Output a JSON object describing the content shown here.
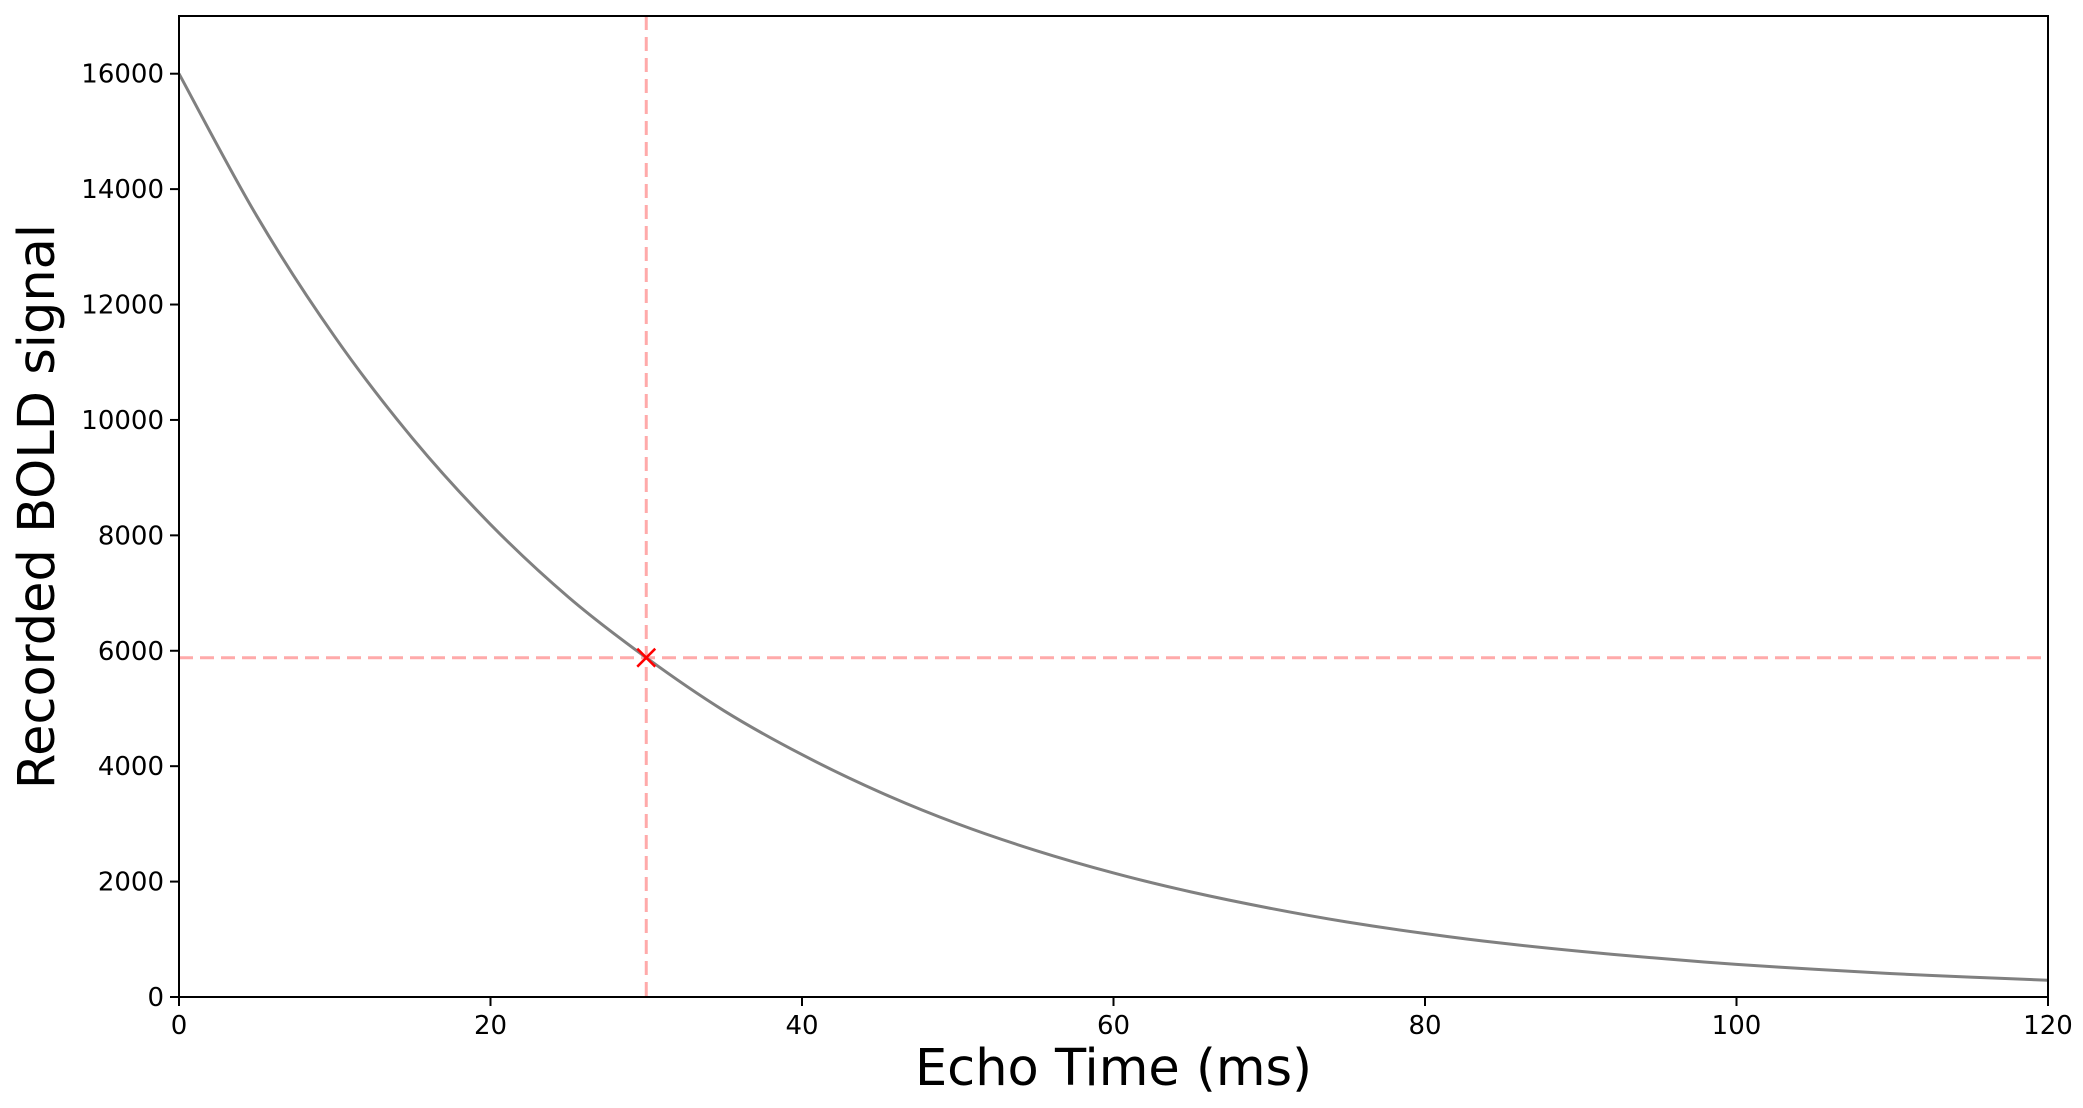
{
  "chart_data": {
    "type": "line",
    "title": "",
    "xlabel": "Echo Time (ms)",
    "ylabel": "Recorded BOLD signal",
    "xlim": [
      0,
      120
    ],
    "ylim": [
      0,
      17000
    ],
    "xticks": [
      0,
      20,
      40,
      60,
      80,
      100,
      120
    ],
    "xtick_labels": [
      "0",
      "20",
      "40",
      "60",
      "80",
      "100",
      "120"
    ],
    "yticks": [
      0,
      2000,
      4000,
      6000,
      8000,
      10000,
      12000,
      14000,
      16000
    ],
    "ytick_labels": [
      "0",
      "2000",
      "4000",
      "6000",
      "8000",
      "10000",
      "12000",
      "14000",
      "16000"
    ],
    "grid": false,
    "series": [
      {
        "color": "#808080",
        "x": [
          0,
          5,
          10,
          15,
          20,
          25,
          30,
          35,
          40,
          45,
          50,
          55,
          60,
          65,
          70,
          75,
          80,
          85,
          90,
          95,
          100,
          105,
          110,
          115,
          120
        ],
        "y": [
          16000,
          13530,
          11440,
          9680,
          8190,
          6930,
          5880,
          4960,
          4200,
          3550,
          3000,
          2540,
          2150,
          1820,
          1540,
          1300,
          1100,
          930,
          790,
          670,
          565,
          480,
          405,
          345,
          290
        ]
      }
    ],
    "marker": {
      "x": 30,
      "y": 5880,
      "symbol": "x",
      "color": "#ff0000"
    },
    "reference_lines": {
      "vertical_x": 30,
      "horizontal_y": 5880,
      "color": "#ffaaaa",
      "style": "dashed"
    }
  }
}
